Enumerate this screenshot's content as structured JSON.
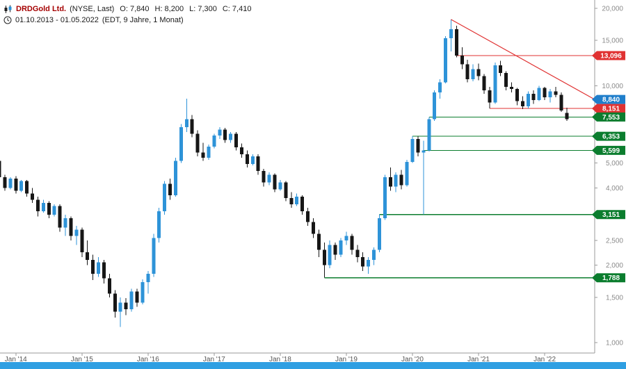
{
  "header": {
    "instrument": "DRDGold Ltd.",
    "instrument_suffix": "(NYSE, Last)",
    "ohlc": {
      "o": "O: 7,840",
      "h": "H: 8,200",
      "l": "L: 7,300",
      "c": "C: 7,410"
    },
    "date_range": "01.10.2013 - 01.05.2022",
    "date_range_info": "(EDT, 9 Jahre, 1 Monat)"
  },
  "colors": {
    "bullish": "#2e93d8",
    "bearish": "#161616",
    "resistance_red": "#e03232",
    "support_green": "#0b7d2e",
    "badge_blue": "#1f7ecb",
    "axis_line": "#9a9a9a",
    "axis_text": "#8a8a8a",
    "x_axis_text": "#555555",
    "range_bar": "#2f9fe2",
    "instrument_name": "#a50000"
  },
  "chart_data": {
    "type": "candlestick",
    "title": "DRDGold Ltd. (NYSE, Last)",
    "interval": "1 Monat",
    "scale": "logarithmic",
    "start_month": "2013-10",
    "end_month": "2022-05",
    "last_ohlc": {
      "open": 7840,
      "high": 8200,
      "low": 7300,
      "close": 7410
    },
    "ylim": [
      1000,
      20000
    ],
    "y_axis_ticks": [
      20000,
      15000,
      10000,
      5000,
      4000,
      2500,
      2000,
      1500,
      1000
    ],
    "x_axis_labels": [
      "Jan '14",
      "Jan '15",
      "Jan '16",
      "Jan '17",
      "Jan '18",
      "Jan '19",
      "Jan '20",
      "Jan '21",
      "Jan '22"
    ],
    "candles_ohlc": [
      [
        5100,
        5300,
        4300,
        4400
      ],
      [
        4400,
        4500,
        3900,
        4000
      ],
      [
        4000,
        4400,
        3950,
        4350
      ],
      [
        4350,
        4450,
        3800,
        3900
      ],
      [
        3900,
        4300,
        3850,
        4250
      ],
      [
        4250,
        4300,
        3700,
        3800
      ],
      [
        3800,
        4000,
        3500,
        3600
      ],
      [
        3600,
        3700,
        3100,
        3250
      ],
      [
        3250,
        3600,
        3200,
        3500
      ],
      [
        3500,
        3550,
        3050,
        3150
      ],
      [
        3150,
        3450,
        3100,
        3400
      ],
      [
        3400,
        3450,
        2700,
        2800
      ],
      [
        2800,
        3150,
        2600,
        3050
      ],
      [
        3050,
        3100,
        2500,
        2600
      ],
      [
        2600,
        2850,
        2400,
        2750
      ],
      [
        2750,
        2800,
        2150,
        2250
      ],
      [
        2250,
        2500,
        2000,
        2100
      ],
      [
        2100,
        2200,
        1750,
        1850
      ],
      [
        1850,
        2150,
        1800,
        2050
      ],
      [
        2050,
        2100,
        1700,
        1780
      ],
      [
        1780,
        1850,
        1500,
        1550
      ],
      [
        1550,
        1600,
        1250,
        1320
      ],
      [
        1320,
        1500,
        1150,
        1430
      ],
      [
        1430,
        1490,
        1280,
        1350
      ],
      [
        1350,
        1620,
        1320,
        1580
      ],
      [
        1580,
        1620,
        1380,
        1430
      ],
      [
        1430,
        1760,
        1410,
        1720
      ],
      [
        1720,
        1900,
        1550,
        1850
      ],
      [
        1850,
        2650,
        1800,
        2550
      ],
      [
        2550,
        3350,
        2450,
        3250
      ],
      [
        3250,
        4250,
        3150,
        4150
      ],
      [
        4150,
        4350,
        3600,
        3750
      ],
      [
        3750,
        5250,
        3700,
        5100
      ],
      [
        5100,
        7100,
        5000,
        6900
      ],
      [
        6900,
        8900,
        6600,
        7400
      ],
      [
        7400,
        7700,
        6300,
        6500
      ],
      [
        6500,
        6700,
        5300,
        5500
      ],
      [
        5500,
        6000,
        5100,
        5250
      ],
      [
        5250,
        5900,
        5150,
        5800
      ],
      [
        5800,
        6500,
        5700,
        6400
      ],
      [
        6400,
        6900,
        6200,
        6750
      ],
      [
        6750,
        6850,
        6000,
        6150
      ],
      [
        6150,
        6600,
        6000,
        6500
      ],
      [
        6500,
        6600,
        5600,
        5750
      ],
      [
        5750,
        5950,
        5250,
        5400
      ],
      [
        5400,
        5600,
        4800,
        4950
      ],
      [
        4950,
        5400,
        4900,
        5300
      ],
      [
        5300,
        5400,
        4500,
        4650
      ],
      [
        4650,
        4750,
        4050,
        4200
      ],
      [
        4200,
        4600,
        4100,
        4500
      ],
      [
        4500,
        4550,
        3850,
        3950
      ],
      [
        3950,
        4300,
        3900,
        4200
      ],
      [
        4200,
        4250,
        3550,
        3650
      ],
      [
        3650,
        3850,
        3350,
        3450
      ],
      [
        3450,
        3800,
        3400,
        3700
      ],
      [
        3700,
        3750,
        3150,
        3250
      ],
      [
        3250,
        3350,
        2850,
        2950
      ],
      [
        2950,
        3050,
        2550,
        2650
      ],
      [
        2650,
        2750,
        2150,
        2300
      ],
      [
        2300,
        2450,
        1788,
        2000
      ],
      [
        2000,
        2500,
        1950,
        2400
      ],
      [
        2400,
        2450,
        2100,
        2200
      ],
      [
        2200,
        2550,
        2150,
        2500
      ],
      [
        2500,
        2700,
        2400,
        2600
      ],
      [
        2600,
        2650,
        2200,
        2300
      ],
      [
        2300,
        2400,
        2050,
        2150
      ],
      [
        2150,
        2250,
        1900,
        1980
      ],
      [
        1980,
        2150,
        1850,
        2100
      ],
      [
        2100,
        2350,
        2000,
        2300
      ],
      [
        2300,
        3151,
        2250,
        3050
      ],
      [
        3050,
        4500,
        3000,
        4400
      ],
      [
        4400,
        4800,
        3900,
        4050
      ],
      [
        4050,
        4600,
        3850,
        4500
      ],
      [
        4500,
        4700,
        3950,
        4100
      ],
      [
        4100,
        5150,
        4050,
        5050
      ],
      [
        5050,
        6353,
        5000,
        6200
      ],
      [
        6200,
        6350,
        5300,
        5500
      ],
      [
        5500,
        6100,
        3151,
        5599
      ],
      [
        5599,
        7553,
        5550,
        7400
      ],
      [
        7400,
        9600,
        7300,
        9400
      ],
      [
        9400,
        10600,
        8900,
        10300
      ],
      [
        10300,
        15600,
        10200,
        15300
      ],
      [
        15300,
        18100,
        13600,
        16600
      ],
      [
        16600,
        17100,
        12900,
        13096
      ],
      [
        13096,
        14100,
        11600,
        12100
      ],
      [
        12100,
        12600,
        10300,
        10600
      ],
      [
        10600,
        12100,
        10400,
        11600
      ],
      [
        11600,
        12200,
        10500,
        10900
      ],
      [
        10900,
        11100,
        9300,
        9600
      ],
      [
        9600,
        9900,
        8151,
        8600
      ],
      [
        8600,
        12300,
        8500,
        12000
      ],
      [
        12000,
        12500,
        10900,
        11200
      ],
      [
        11200,
        11400,
        9600,
        9900
      ],
      [
        9900,
        10300,
        9400,
        9700
      ],
      [
        9700,
        9800,
        8400,
        8700
      ],
      [
        8700,
        9100,
        8100,
        8300
      ],
      [
        8300,
        9500,
        8151,
        9300
      ],
      [
        9300,
        9600,
        8500,
        8800
      ],
      [
        8800,
        10000,
        8700,
        9800
      ],
      [
        9800,
        9900,
        8800,
        9000
      ],
      [
        9000,
        9700,
        8600,
        9500
      ],
      [
        9500,
        9900,
        9000,
        9200
      ],
      [
        9200,
        9400,
        7900,
        8000
      ],
      [
        7840,
        8200,
        7300,
        7410
      ]
    ],
    "support_levels": [
      {
        "price": 7553,
        "label": "7,553",
        "start_month": "2020-04"
      },
      {
        "price": 6353,
        "label": "6,353",
        "start_month": "2020-01"
      },
      {
        "price": 5599,
        "label": "5,599",
        "start_month": "2020-03"
      },
      {
        "price": 3151,
        "label": "3,151",
        "start_month": "2019-07"
      },
      {
        "price": 1788,
        "label": "1,788",
        "start_month": "2018-09"
      }
    ],
    "resistance_levels": [
      {
        "price": 13096,
        "label": "13,096",
        "start_month": "2020-09"
      },
      {
        "price": 8151,
        "label": "8,151",
        "start_month": "2021-03"
      }
    ],
    "trendline": {
      "start_month": "2020-08",
      "start_price": 18100,
      "end_price": 8840,
      "end_label": "8,840"
    }
  }
}
